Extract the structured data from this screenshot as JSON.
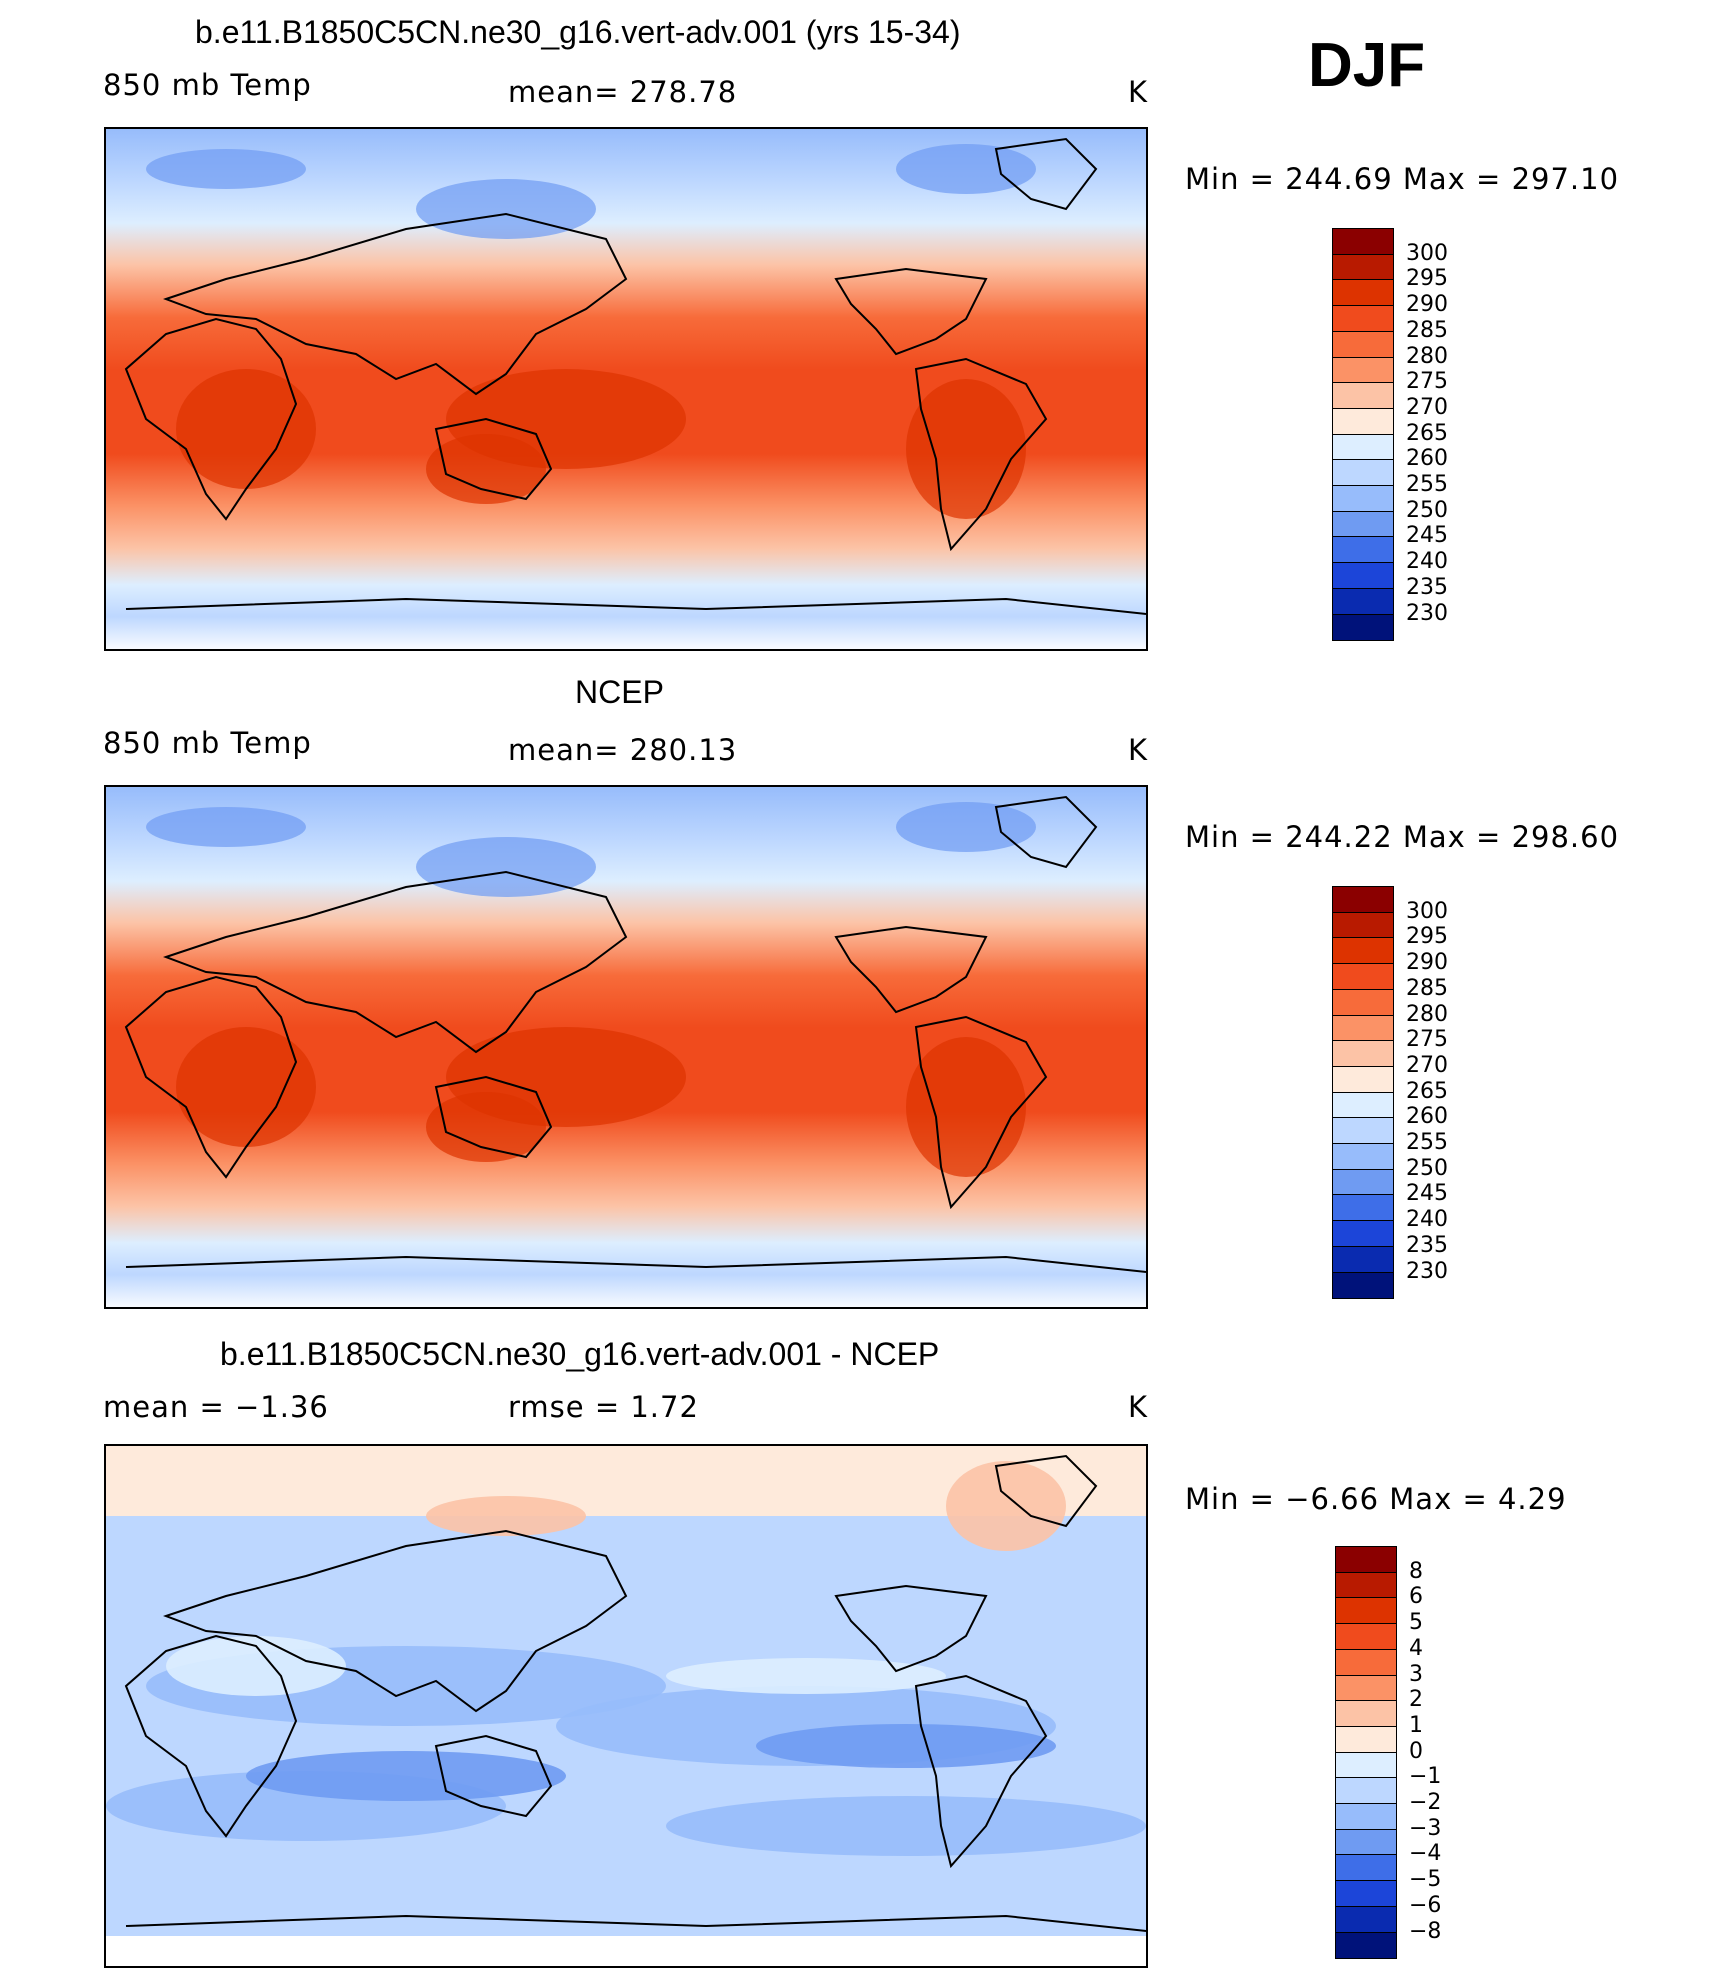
{
  "season": "DJF",
  "panels": [
    {
      "id": "model",
      "title": "b.e11.B1850C5CN.ne30_g16.vert-adv.001 (yrs 15-34)",
      "left_label": "850 mb Temp",
      "center_label": "mean=  278.78",
      "units": "K",
      "minmax": "Min  =  244.69  Max  =  297.10",
      "colorbar": [
        "300",
        "295",
        "290",
        "285",
        "280",
        "275",
        "270",
        "265",
        "260",
        "255",
        "250",
        "245",
        "240",
        "235",
        "230"
      ],
      "colors": [
        "#8b0000",
        "#b81a00",
        "#dd3300",
        "#f04b1d",
        "#f76b3a",
        "#fb9266",
        "#fcc3a6",
        "#feeadb",
        "#ddeeff",
        "#bdd7ff",
        "#97bcfb",
        "#6f9bf2",
        "#3e6ee8",
        "#1c45d9",
        "#0a2bb0",
        "#00127a"
      ]
    },
    {
      "id": "obs",
      "title": "NCEP",
      "left_label": "850 mb Temp",
      "center_label": "mean=  280.13",
      "units": "K",
      "minmax": "Min  =  244.22  Max  =  298.60",
      "colorbar": [
        "300",
        "295",
        "290",
        "285",
        "280",
        "275",
        "270",
        "265",
        "260",
        "255",
        "250",
        "245",
        "240",
        "235",
        "230"
      ],
      "colors": [
        "#8b0000",
        "#b81a00",
        "#dd3300",
        "#f04b1d",
        "#f76b3a",
        "#fb9266",
        "#fcc3a6",
        "#feeadb",
        "#ddeeff",
        "#bdd7ff",
        "#97bcfb",
        "#6f9bf2",
        "#3e6ee8",
        "#1c45d9",
        "#0a2bb0",
        "#00127a"
      ]
    },
    {
      "id": "diff",
      "title": "b.e11.B1850C5CN.ne30_g16.vert-adv.001 - NCEP",
      "left_label": "mean  =    −1.36",
      "center_label": "rmse  =     1.72",
      "units": "K",
      "minmax": "Min  =    −6.66  Max  =     4.29",
      "colorbar": [
        "8",
        "6",
        "5",
        "4",
        "3",
        "2",
        "1",
        "0",
        "−1",
        "−2",
        "−3",
        "−4",
        "−5",
        "−6",
        "−8"
      ],
      "colors": [
        "#8b0000",
        "#b81a00",
        "#dd3300",
        "#f04b1d",
        "#f76b3a",
        "#fb9266",
        "#fcc3a6",
        "#feeadb",
        "#ddeeff",
        "#bdd7ff",
        "#97bcfb",
        "#6f9bf2",
        "#3e6ee8",
        "#1c45d9",
        "#0a2bb0",
        "#00127a"
      ]
    }
  ]
}
